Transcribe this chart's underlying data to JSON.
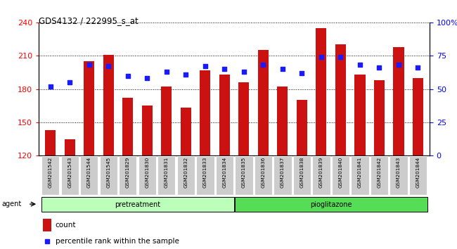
{
  "title": "GDS4132 / 222995_s_at",
  "samples": [
    "GSM201542",
    "GSM201543",
    "GSM201544",
    "GSM201545",
    "GSM201829",
    "GSM201830",
    "GSM201831",
    "GSM201832",
    "GSM201833",
    "GSM201834",
    "GSM201835",
    "GSM201836",
    "GSM201837",
    "GSM201838",
    "GSM201839",
    "GSM201840",
    "GSM201841",
    "GSM201842",
    "GSM201843",
    "GSM201844"
  ],
  "counts": [
    143,
    135,
    205,
    211,
    172,
    165,
    182,
    163,
    197,
    193,
    186,
    215,
    182,
    170,
    235,
    220,
    193,
    188,
    218,
    190
  ],
  "percentiles": [
    52,
    55,
    68,
    67,
    60,
    58,
    63,
    61,
    67,
    65,
    63,
    68,
    65,
    62,
    74,
    74,
    68,
    66,
    68,
    66
  ],
  "bar_color": "#cc1111",
  "dot_color": "#1a1aff",
  "ylim_left": [
    120,
    240
  ],
  "ylim_right": [
    0,
    100
  ],
  "yticks_left": [
    120,
    150,
    180,
    210,
    240
  ],
  "yticks_right": [
    0,
    25,
    50,
    75,
    100
  ],
  "ytick_labels_right": [
    "0",
    "25",
    "50",
    "75",
    "100%"
  ],
  "group1_label": "pretreatment",
  "group2_label": "pioglitazone",
  "group1_indices": [
    0,
    1,
    2,
    3,
    4,
    5,
    6,
    7,
    8,
    9
  ],
  "group2_indices": [
    10,
    11,
    12,
    13,
    14,
    15,
    16,
    17,
    18,
    19
  ],
  "agent_label": "agent",
  "legend_count_label": "count",
  "legend_pct_label": "percentile rank within the sample",
  "group1_color": "#bbffbb",
  "group2_color": "#55dd55",
  "bar_width": 0.55,
  "background_color": "#ffffff",
  "xticklabel_bg": "#cccccc"
}
